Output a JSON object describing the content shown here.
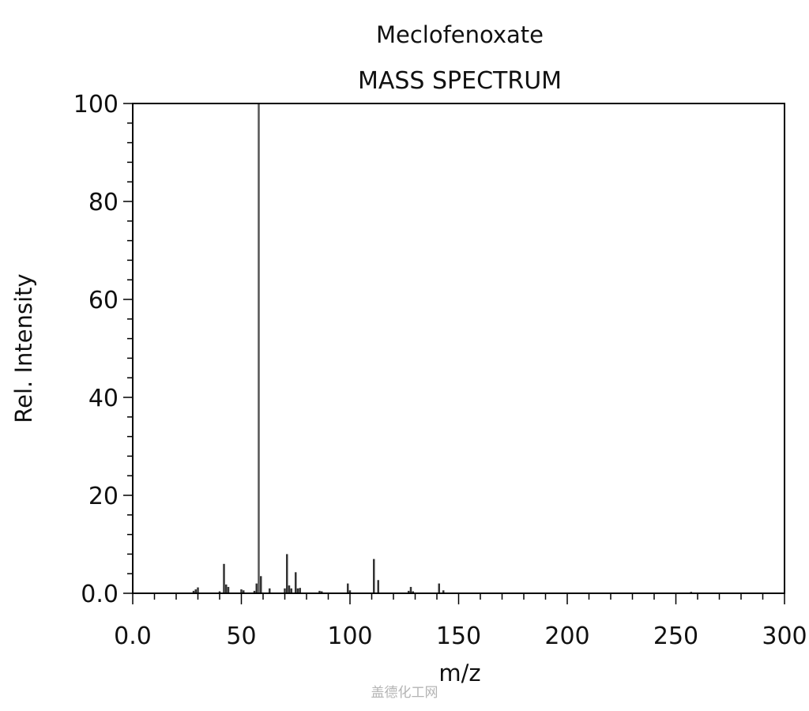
{
  "chart_data": {
    "type": "bar",
    "title": "Meclofenoxate",
    "subtitle": "MASS SPECTRUM",
    "xlabel": "m/z",
    "ylabel": "Rel. Intensity",
    "xlim": [
      0,
      300
    ],
    "ylim": [
      0,
      100
    ],
    "x_ticks": [
      0,
      50,
      100,
      150,
      200,
      250,
      300
    ],
    "x_tick_labels": [
      "0.0",
      "50",
      "100",
      "150",
      "200",
      "250",
      "300"
    ],
    "y_ticks": [
      0,
      20,
      40,
      60,
      80,
      100
    ],
    "y_tick_labels": [
      "0.0",
      "20",
      "40",
      "60",
      "80",
      "100"
    ],
    "grid": false,
    "peaks": [
      {
        "mz": 28,
        "intensity": 0.5
      },
      {
        "mz": 29,
        "intensity": 0.8
      },
      {
        "mz": 30,
        "intensity": 1.2
      },
      {
        "mz": 40,
        "intensity": 0.4
      },
      {
        "mz": 42,
        "intensity": 6.0
      },
      {
        "mz": 43,
        "intensity": 1.8
      },
      {
        "mz": 44,
        "intensity": 1.3
      },
      {
        "mz": 50,
        "intensity": 0.8
      },
      {
        "mz": 51,
        "intensity": 0.6
      },
      {
        "mz": 56,
        "intensity": 0.5
      },
      {
        "mz": 57,
        "intensity": 2.0
      },
      {
        "mz": 58,
        "intensity": 100
      },
      {
        "mz": 59,
        "intensity": 3.5
      },
      {
        "mz": 63,
        "intensity": 1.0
      },
      {
        "mz": 70,
        "intensity": 1.0
      },
      {
        "mz": 71,
        "intensity": 8.0
      },
      {
        "mz": 72,
        "intensity": 1.6
      },
      {
        "mz": 73,
        "intensity": 1.0
      },
      {
        "mz": 75,
        "intensity": 4.3
      },
      {
        "mz": 76,
        "intensity": 1.0
      },
      {
        "mz": 77,
        "intensity": 1.1
      },
      {
        "mz": 86,
        "intensity": 0.5
      },
      {
        "mz": 87,
        "intensity": 0.4
      },
      {
        "mz": 99,
        "intensity": 2.0
      },
      {
        "mz": 100,
        "intensity": 0.6
      },
      {
        "mz": 111,
        "intensity": 7.0
      },
      {
        "mz": 113,
        "intensity": 2.7
      },
      {
        "mz": 127,
        "intensity": 0.5
      },
      {
        "mz": 128,
        "intensity": 1.3
      },
      {
        "mz": 129,
        "intensity": 0.4
      },
      {
        "mz": 141,
        "intensity": 2.0
      },
      {
        "mz": 143,
        "intensity": 0.6
      },
      {
        "mz": 257,
        "intensity": 0.3
      }
    ],
    "main_peak_color": "#555555",
    "peak_color": "#333333",
    "axis_color": "#000000"
  },
  "watermark": "盖德化工网"
}
